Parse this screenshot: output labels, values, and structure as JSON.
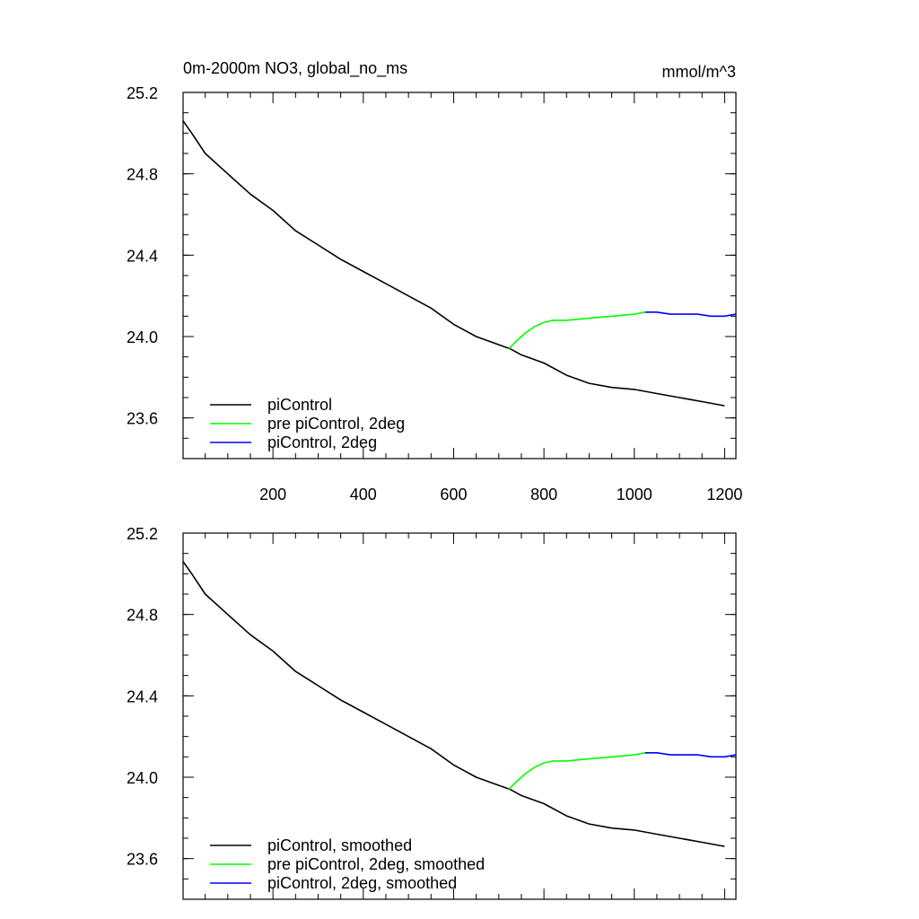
{
  "header": {
    "title": "0m-2000m NO3, global_no_ms",
    "units": "mmol/m^3"
  },
  "colors": {
    "piControl": "#000000",
    "pre_piControl_2deg": "#00ff00",
    "piControl_2deg": "#0000ff"
  },
  "chart_data": [
    {
      "type": "line",
      "title": "0m-2000m NO3, global_no_ms",
      "units": "mmol/m^3",
      "xlim": [
        1,
        1225
      ],
      "ylim": [
        23.4,
        25.2
      ],
      "x_ticks": [
        200,
        400,
        600,
        800,
        1000,
        1200
      ],
      "x_tick_labels": [
        "200",
        "400",
        "600",
        "800",
        "1000",
        "1200"
      ],
      "y_ticks": [
        23.6,
        24.0,
        24.4,
        24.8,
        25.2
      ],
      "y_tick_labels": [
        "23.6",
        "24.0",
        "24.4",
        "24.8",
        "25.2"
      ],
      "grid": false,
      "legend_position": "bottom-left",
      "series": [
        {
          "name": "piControl",
          "color": "#000000",
          "x": [
            1,
            20,
            50,
            100,
            150,
            200,
            250,
            300,
            350,
            400,
            450,
            500,
            550,
            600,
            650,
            700,
            725,
            750,
            800,
            850,
            900,
            950,
            1000,
            1050,
            1100,
            1150,
            1200
          ],
          "y": [
            25.06,
            25.0,
            24.9,
            24.8,
            24.7,
            24.62,
            24.52,
            24.45,
            24.38,
            24.32,
            24.26,
            24.2,
            24.14,
            24.06,
            24.0,
            23.96,
            23.94,
            23.91,
            23.87,
            23.81,
            23.77,
            23.75,
            23.74,
            23.72,
            23.7,
            23.68,
            23.66
          ]
        },
        {
          "name": "pre piControl, 2deg",
          "color": "#00ff00",
          "x": [
            722,
            740,
            760,
            780,
            800,
            820,
            850,
            900,
            950,
            1000,
            1024
          ],
          "y": [
            23.94,
            23.98,
            24.02,
            24.05,
            24.07,
            24.08,
            24.08,
            24.09,
            24.1,
            24.11,
            24.12
          ]
        },
        {
          "name": "piControl, 2deg",
          "color": "#0000ff",
          "x": [
            1024,
            1050,
            1080,
            1110,
            1140,
            1170,
            1200,
            1225
          ],
          "y": [
            24.12,
            24.12,
            24.11,
            24.11,
            24.11,
            24.1,
            24.1,
            24.11
          ]
        }
      ]
    },
    {
      "type": "line",
      "xlim": [
        1,
        1225
      ],
      "ylim": [
        23.4,
        25.2
      ],
      "x_ticks": [
        200,
        400,
        600,
        800,
        1000,
        1200
      ],
      "y_ticks": [
        23.6,
        24.0,
        24.4,
        24.8,
        25.2
      ],
      "y_tick_labels": [
        "23.6",
        "24.0",
        "24.4",
        "24.8",
        "25.2"
      ],
      "grid": false,
      "legend_position": "bottom-left",
      "series": [
        {
          "name": "piControl, smoothed",
          "color": "#000000",
          "x": [
            1,
            20,
            50,
            100,
            150,
            200,
            250,
            300,
            350,
            400,
            450,
            500,
            550,
            600,
            650,
            700,
            725,
            750,
            800,
            850,
            900,
            950,
            1000,
            1050,
            1100,
            1150,
            1200
          ],
          "y": [
            25.06,
            25.0,
            24.9,
            24.8,
            24.7,
            24.62,
            24.52,
            24.45,
            24.38,
            24.32,
            24.26,
            24.2,
            24.14,
            24.06,
            24.0,
            23.96,
            23.94,
            23.91,
            23.87,
            23.81,
            23.77,
            23.75,
            23.74,
            23.72,
            23.7,
            23.68,
            23.66
          ]
        },
        {
          "name": "pre piControl, 2deg, smoothed",
          "color": "#00ff00",
          "x": [
            722,
            740,
            760,
            780,
            800,
            820,
            850,
            900,
            950,
            1000,
            1024
          ],
          "y": [
            23.94,
            23.98,
            24.02,
            24.05,
            24.07,
            24.08,
            24.08,
            24.09,
            24.1,
            24.11,
            24.12
          ]
        },
        {
          "name": "piControl, 2deg, smoothed",
          "color": "#0000ff",
          "x": [
            1024,
            1050,
            1080,
            1110,
            1140,
            1170,
            1200,
            1225
          ],
          "y": [
            24.12,
            24.12,
            24.11,
            24.11,
            24.11,
            24.1,
            24.1,
            24.11
          ]
        }
      ]
    }
  ]
}
